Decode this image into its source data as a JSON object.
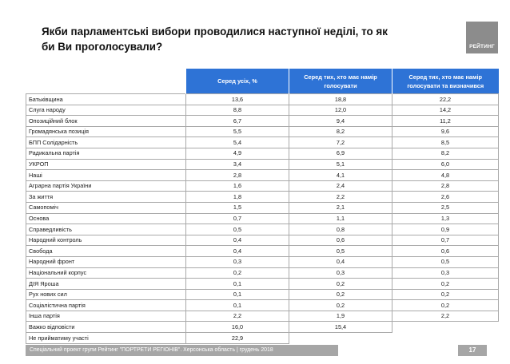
{
  "title": "Якби парламентські вибори проводилися наступної неділі, то як би Ви проголосували?",
  "logo_text": "РЕЙТИНГ",
  "table": {
    "headers": [
      "Серед усіх, %",
      "Серед тих, хто має намір голосувати",
      "Серед тих, хто має намір голосувати та визначився"
    ],
    "rows": [
      {
        "name": "Батьківщина",
        "all": "13,6",
        "voters": "18,8",
        "decided": "22,2"
      },
      {
        "name": "Слуга народу",
        "all": "8,8",
        "voters": "12,0",
        "decided": "14,2"
      },
      {
        "name": "Опозиційний блок",
        "all": "6,7",
        "voters": "9,4",
        "decided": "11,2"
      },
      {
        "name": "Громадянська позиція",
        "all": "5,5",
        "voters": "8,2",
        "decided": "9,6"
      },
      {
        "name": "БПП Солідарність",
        "all": "5,4",
        "voters": "7,2",
        "decided": "8,5"
      },
      {
        "name": "Радикальна партія",
        "all": "4,9",
        "voters": "6,9",
        "decided": "8,2"
      },
      {
        "name": "УКРОП",
        "all": "3,4",
        "voters": "5,1",
        "decided": "6,0"
      },
      {
        "name": "Наші",
        "all": "2,8",
        "voters": "4,1",
        "decided": "4,8"
      },
      {
        "name": "Аграрна партія України",
        "all": "1,6",
        "voters": "2,4",
        "decided": "2,8"
      },
      {
        "name": "За життя",
        "all": "1,8",
        "voters": "2,2",
        "decided": "2,6"
      },
      {
        "name": "Самопоміч",
        "all": "1,5",
        "voters": "2,1",
        "decided": "2,5"
      },
      {
        "name": "Основа",
        "all": "0,7",
        "voters": "1,1",
        "decided": "1,3"
      },
      {
        "name": "Справедливість",
        "all": "0,5",
        "voters": "0,8",
        "decided": "0,9"
      },
      {
        "name": "Народний контроль",
        "all": "0,4",
        "voters": "0,6",
        "decided": "0,7"
      },
      {
        "name": "Свобода",
        "all": "0,4",
        "voters": "0,5",
        "decided": "0,6"
      },
      {
        "name": "Народний фронт",
        "all": "0,3",
        "voters": "0,4",
        "decided": "0,5"
      },
      {
        "name": "Національний корпус",
        "all": "0,2",
        "voters": "0,3",
        "decided": "0,3"
      },
      {
        "name": "ДІЯ Яроша",
        "all": "0,1",
        "voters": "0,2",
        "decided": "0,2"
      },
      {
        "name": "Рух нових сил",
        "all": "0,1",
        "voters": "0,2",
        "decided": "0,2"
      },
      {
        "name": "Соціалістична партія",
        "all": "0,1",
        "voters": "0,2",
        "decided": "0,2"
      },
      {
        "name": "Інша партія",
        "all": "2,2",
        "voters": "1,9",
        "decided": "2,2"
      },
      {
        "name": "Важко відповісти",
        "all": "16,0",
        "voters": "15,4",
        "decided": ""
      },
      {
        "name": "Не прийматиму участі",
        "all": "22,9",
        "voters": "",
        "decided": ""
      }
    ]
  },
  "footer": "Спеціальний проект групи Рейтинг \"ПОРТРЕТИ РЕГІОНІВ\". Херсонська область | грудень 2018",
  "page_number": "17"
}
